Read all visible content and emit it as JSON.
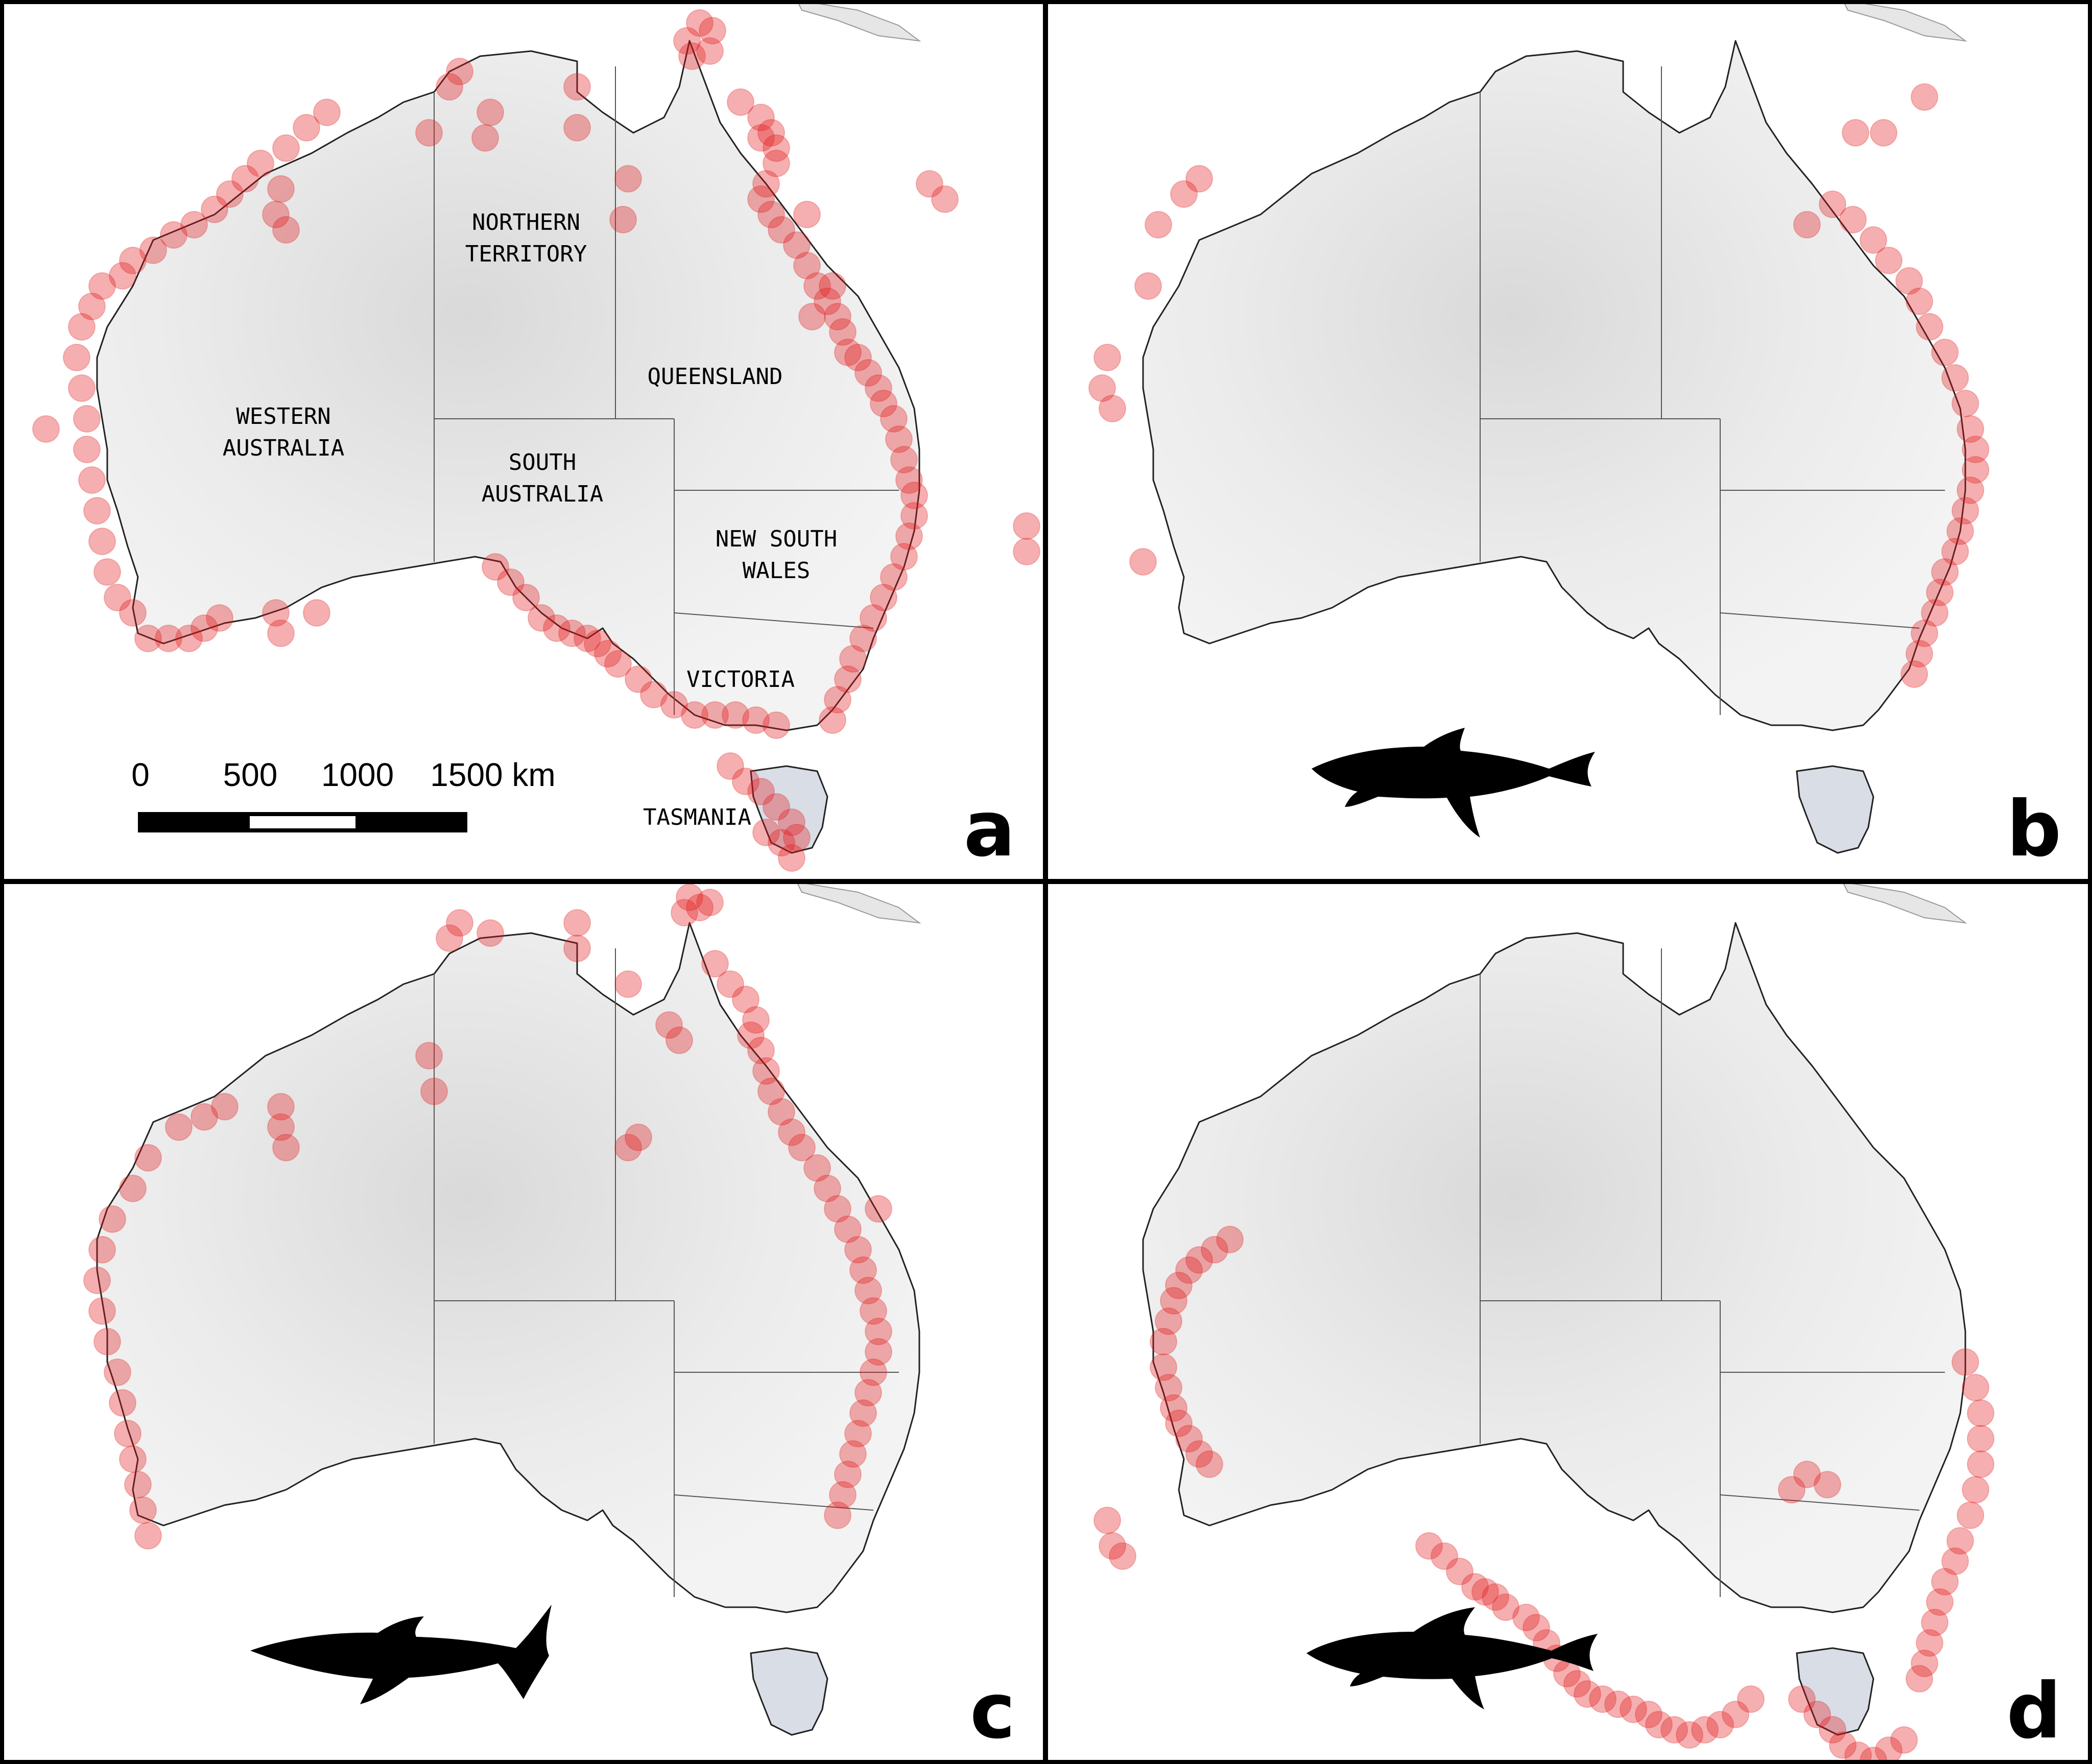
{
  "figure": {
    "panels": [
      {
        "id": "a",
        "letter": "a",
        "show_labels": true,
        "shark": null,
        "dots": [
          [
            1370,
            45
          ],
          [
            1345,
            80
          ],
          [
            1395,
            60
          ],
          [
            1355,
            110
          ],
          [
            1390,
            100
          ],
          [
            900,
            140
          ],
          [
            880,
            170
          ],
          [
            1130,
            170
          ],
          [
            960,
            220
          ],
          [
            1130,
            250
          ],
          [
            1230,
            350
          ],
          [
            1450,
            200
          ],
          [
            1490,
            230
          ],
          [
            1510,
            260
          ],
          [
            1520,
            290
          ],
          [
            1490,
            270
          ],
          [
            1520,
            320
          ],
          [
            1500,
            360
          ],
          [
            1490,
            390
          ],
          [
            1510,
            420
          ],
          [
            1530,
            450
          ],
          [
            1560,
            480
          ],
          [
            1580,
            520
          ],
          [
            1600,
            560
          ],
          [
            1620,
            590
          ],
          [
            1640,
            620
          ],
          [
            1650,
            650
          ],
          [
            1590,
            620
          ],
          [
            1660,
            690
          ],
          [
            1680,
            700
          ],
          [
            1700,
            730
          ],
          [
            1720,
            760
          ],
          [
            1730,
            790
          ],
          [
            1750,
            820
          ],
          [
            1760,
            860
          ],
          [
            1770,
            900
          ],
          [
            1780,
            940
          ],
          [
            1790,
            970
          ],
          [
            1790,
            1010
          ],
          [
            1780,
            1050
          ],
          [
            1770,
            1090
          ],
          [
            1750,
            1130
          ],
          [
            1730,
            1170
          ],
          [
            1710,
            1210
          ],
          [
            1690,
            1250
          ],
          [
            1670,
            1290
          ],
          [
            1660,
            1330
          ],
          [
            1640,
            1370
          ],
          [
            1630,
            1410
          ],
          [
            1520,
            1420
          ],
          [
            1480,
            1410
          ],
          [
            1440,
            1400
          ],
          [
            1400,
            1400
          ],
          [
            1360,
            1400
          ],
          [
            1320,
            1380
          ],
          [
            1280,
            1360
          ],
          [
            1250,
            1330
          ],
          [
            1210,
            1300
          ],
          [
            1190,
            1280
          ],
          [
            1170,
            1260
          ],
          [
            1150,
            1250
          ],
          [
            1120,
            1240
          ],
          [
            1090,
            1230
          ],
          [
            1060,
            1210
          ],
          [
            1030,
            1170
          ],
          [
            1000,
            1140
          ],
          [
            970,
            1110
          ],
          [
            1430,
            1500
          ],
          [
            1460,
            1530
          ],
          [
            1490,
            1550
          ],
          [
            1520,
            1580
          ],
          [
            1550,
            1610
          ],
          [
            1560,
            1640
          ],
          [
            1530,
            1650
          ],
          [
            1500,
            1630
          ],
          [
            1550,
            1680
          ],
          [
            430,
            1210
          ],
          [
            400,
            1230
          ],
          [
            370,
            1250
          ],
          [
            330,
            1250
          ],
          [
            290,
            1250
          ],
          [
            260,
            1200
          ],
          [
            230,
            1170
          ],
          [
            210,
            1120
          ],
          [
            200,
            1060
          ],
          [
            190,
            1000
          ],
          [
            180,
            940
          ],
          [
            170,
            880
          ],
          [
            170,
            820
          ],
          [
            160,
            760
          ],
          [
            150,
            700
          ],
          [
            160,
            640
          ],
          [
            180,
            600
          ],
          [
            200,
            560
          ],
          [
            240,
            540
          ],
          [
            260,
            510
          ],
          [
            300,
            490
          ],
          [
            340,
            460
          ],
          [
            380,
            440
          ],
          [
            420,
            410
          ],
          [
            450,
            380
          ],
          [
            480,
            350
          ],
          [
            510,
            320
          ],
          [
            560,
            290
          ],
          [
            600,
            250
          ],
          [
            640,
            220
          ],
          [
            560,
            450
          ],
          [
            540,
            420
          ],
          [
            550,
            370
          ],
          [
            90,
            840
          ],
          [
            2010,
            1030
          ],
          [
            2010,
            1080
          ],
          [
            1630,
            560
          ],
          [
            1850,
            390
          ],
          [
            1820,
            360
          ],
          [
            1580,
            420
          ],
          [
            1220,
            430
          ],
          [
            840,
            260
          ],
          [
            950,
            270
          ],
          [
            540,
            1200
          ],
          [
            550,
            1240
          ],
          [
            620,
            1200
          ]
        ]
      },
      {
        "id": "b",
        "letter": "b",
        "show_labels": false,
        "shark": "bull-shark",
        "dots": [
          [
            1720,
            190
          ],
          [
            1640,
            260
          ],
          [
            1585,
            260
          ],
          [
            1540,
            400
          ],
          [
            1580,
            430
          ],
          [
            1620,
            470
          ],
          [
            1650,
            510
          ],
          [
            1690,
            550
          ],
          [
            1710,
            590
          ],
          [
            1730,
            640
          ],
          [
            1760,
            690
          ],
          [
            1780,
            740
          ],
          [
            1800,
            790
          ],
          [
            1810,
            840
          ],
          [
            1820,
            880
          ],
          [
            1820,
            920
          ],
          [
            1810,
            960
          ],
          [
            1800,
            1000
          ],
          [
            1790,
            1040
          ],
          [
            1780,
            1080
          ],
          [
            1760,
            1120
          ],
          [
            1750,
            1160
          ],
          [
            1740,
            1200
          ],
          [
            1720,
            1240
          ],
          [
            1710,
            1280
          ],
          [
            1700,
            1320
          ],
          [
            1490,
            440
          ],
          [
            190,
            1100
          ],
          [
            120,
            700
          ],
          [
            110,
            760
          ],
          [
            130,
            800
          ],
          [
            220,
            440
          ],
          [
            270,
            380
          ],
          [
            300,
            350
          ],
          [
            200,
            560
          ]
        ]
      },
      {
        "id": "c",
        "letter": "c",
        "show_labels": false,
        "shark": "tiger-shark",
        "dots": [
          [
            1350,
            30
          ],
          [
            1370,
            50
          ],
          [
            1340,
            60
          ],
          [
            1390,
            40
          ],
          [
            900,
            80
          ],
          [
            880,
            110
          ],
          [
            960,
            100
          ],
          [
            1130,
            80
          ],
          [
            1130,
            130
          ],
          [
            1230,
            200
          ],
          [
            1400,
            160
          ],
          [
            1430,
            200
          ],
          [
            1460,
            230
          ],
          [
            1480,
            270
          ],
          [
            1470,
            300
          ],
          [
            1490,
            330
          ],
          [
            1500,
            370
          ],
          [
            1510,
            410
          ],
          [
            1530,
            450
          ],
          [
            1550,
            490
          ],
          [
            1570,
            520
          ],
          [
            1600,
            560
          ],
          [
            1620,
            600
          ],
          [
            1640,
            640
          ],
          [
            1660,
            680
          ],
          [
            1680,
            720
          ],
          [
            1690,
            760
          ],
          [
            1700,
            800
          ],
          [
            1710,
            840
          ],
          [
            1720,
            880
          ],
          [
            1720,
            920
          ],
          [
            1710,
            960
          ],
          [
            1700,
            1000
          ],
          [
            1690,
            1040
          ],
          [
            1680,
            1080
          ],
          [
            1670,
            1120
          ],
          [
            1660,
            1160
          ],
          [
            1650,
            1200
          ],
          [
            1640,
            1240
          ],
          [
            1720,
            640
          ],
          [
            560,
            520
          ],
          [
            550,
            480
          ],
          [
            550,
            440
          ],
          [
            440,
            440
          ],
          [
            400,
            460
          ],
          [
            350,
            480
          ],
          [
            290,
            540
          ],
          [
            260,
            600
          ],
          [
            220,
            660
          ],
          [
            200,
            720
          ],
          [
            190,
            780
          ],
          [
            200,
            840
          ],
          [
            210,
            900
          ],
          [
            230,
            960
          ],
          [
            240,
            1020
          ],
          [
            250,
            1080
          ],
          [
            260,
            1130
          ],
          [
            270,
            1180
          ],
          [
            280,
            1230
          ],
          [
            290,
            1280
          ],
          [
            850,
            410
          ],
          [
            840,
            340
          ],
          [
            1250,
            500
          ],
          [
            1230,
            520
          ],
          [
            1330,
            310
          ],
          [
            1310,
            280
          ]
        ]
      },
      {
        "id": "d",
        "letter": "d",
        "show_labels": false,
        "shark": "white-shark",
        "dots": [
          [
            1800,
            940
          ],
          [
            1820,
            990
          ],
          [
            1830,
            1040
          ],
          [
            1830,
            1090
          ],
          [
            1830,
            1140
          ],
          [
            1820,
            1190
          ],
          [
            1810,
            1240
          ],
          [
            1790,
            1290
          ],
          [
            1780,
            1330
          ],
          [
            1760,
            1370
          ],
          [
            1750,
            1410
          ],
          [
            1740,
            1450
          ],
          [
            1730,
            1490
          ],
          [
            1720,
            1530
          ],
          [
            1710,
            1560
          ],
          [
            1380,
            1600
          ],
          [
            1350,
            1630
          ],
          [
            1320,
            1650
          ],
          [
            1290,
            1660
          ],
          [
            1260,
            1670
          ],
          [
            1230,
            1660
          ],
          [
            1200,
            1650
          ],
          [
            1180,
            1630
          ],
          [
            1150,
            1620
          ],
          [
            1120,
            1610
          ],
          [
            1090,
            1600
          ],
          [
            1060,
            1590
          ],
          [
            1040,
            1570
          ],
          [
            1020,
            1550
          ],
          [
            1000,
            1520
          ],
          [
            980,
            1490
          ],
          [
            960,
            1460
          ],
          [
            940,
            1440
          ],
          [
            900,
            1420
          ],
          [
            880,
            1400
          ],
          [
            860,
            1390
          ],
          [
            840,
            1380
          ],
          [
            810,
            1350
          ],
          [
            780,
            1320
          ],
          [
            750,
            1300
          ],
          [
            1480,
            1600
          ],
          [
            1510,
            1630
          ],
          [
            1540,
            1660
          ],
          [
            1560,
            1690
          ],
          [
            1590,
            1710
          ],
          [
            1620,
            1720
          ],
          [
            1650,
            1700
          ],
          [
            1680,
            1680
          ],
          [
            320,
            1140
          ],
          [
            300,
            1120
          ],
          [
            280,
            1090
          ],
          [
            260,
            1060
          ],
          [
            250,
            1030
          ],
          [
            240,
            990
          ],
          [
            230,
            950
          ],
          [
            230,
            900
          ],
          [
            240,
            860
          ],
          [
            250,
            820
          ],
          [
            260,
            790
          ],
          [
            280,
            760
          ],
          [
            300,
            740
          ],
          [
            330,
            720
          ],
          [
            360,
            700
          ],
          [
            120,
            1250
          ],
          [
            130,
            1300
          ],
          [
            150,
            1320
          ],
          [
            1530,
            1180
          ],
          [
            1490,
            1160
          ],
          [
            1460,
            1190
          ]
        ]
      }
    ],
    "state_labels": [
      {
        "key": "wa",
        "text": "WESTERN\nAUSTRALIA"
      },
      {
        "key": "nt",
        "text": "NORTHERN\nTERRITORY"
      },
      {
        "key": "qld",
        "text": "QUEENSLAND"
      },
      {
        "key": "sa",
        "text": "SOUTH\nAUSTRALIA"
      },
      {
        "key": "nsw",
        "text": "NEW SOUTH\nWALES"
      },
      {
        "key": "vic",
        "text": "VICTORIA"
      },
      {
        "key": "tas",
        "text": "TASMANIA"
      }
    ],
    "scale_bar": {
      "ticks": [
        "0",
        "500",
        "1000",
        "1500 km"
      ]
    },
    "colors": {
      "dot": "#e31a1c",
      "land": "#ececec",
      "background": "#ffffff",
      "frame": "#000000"
    }
  }
}
